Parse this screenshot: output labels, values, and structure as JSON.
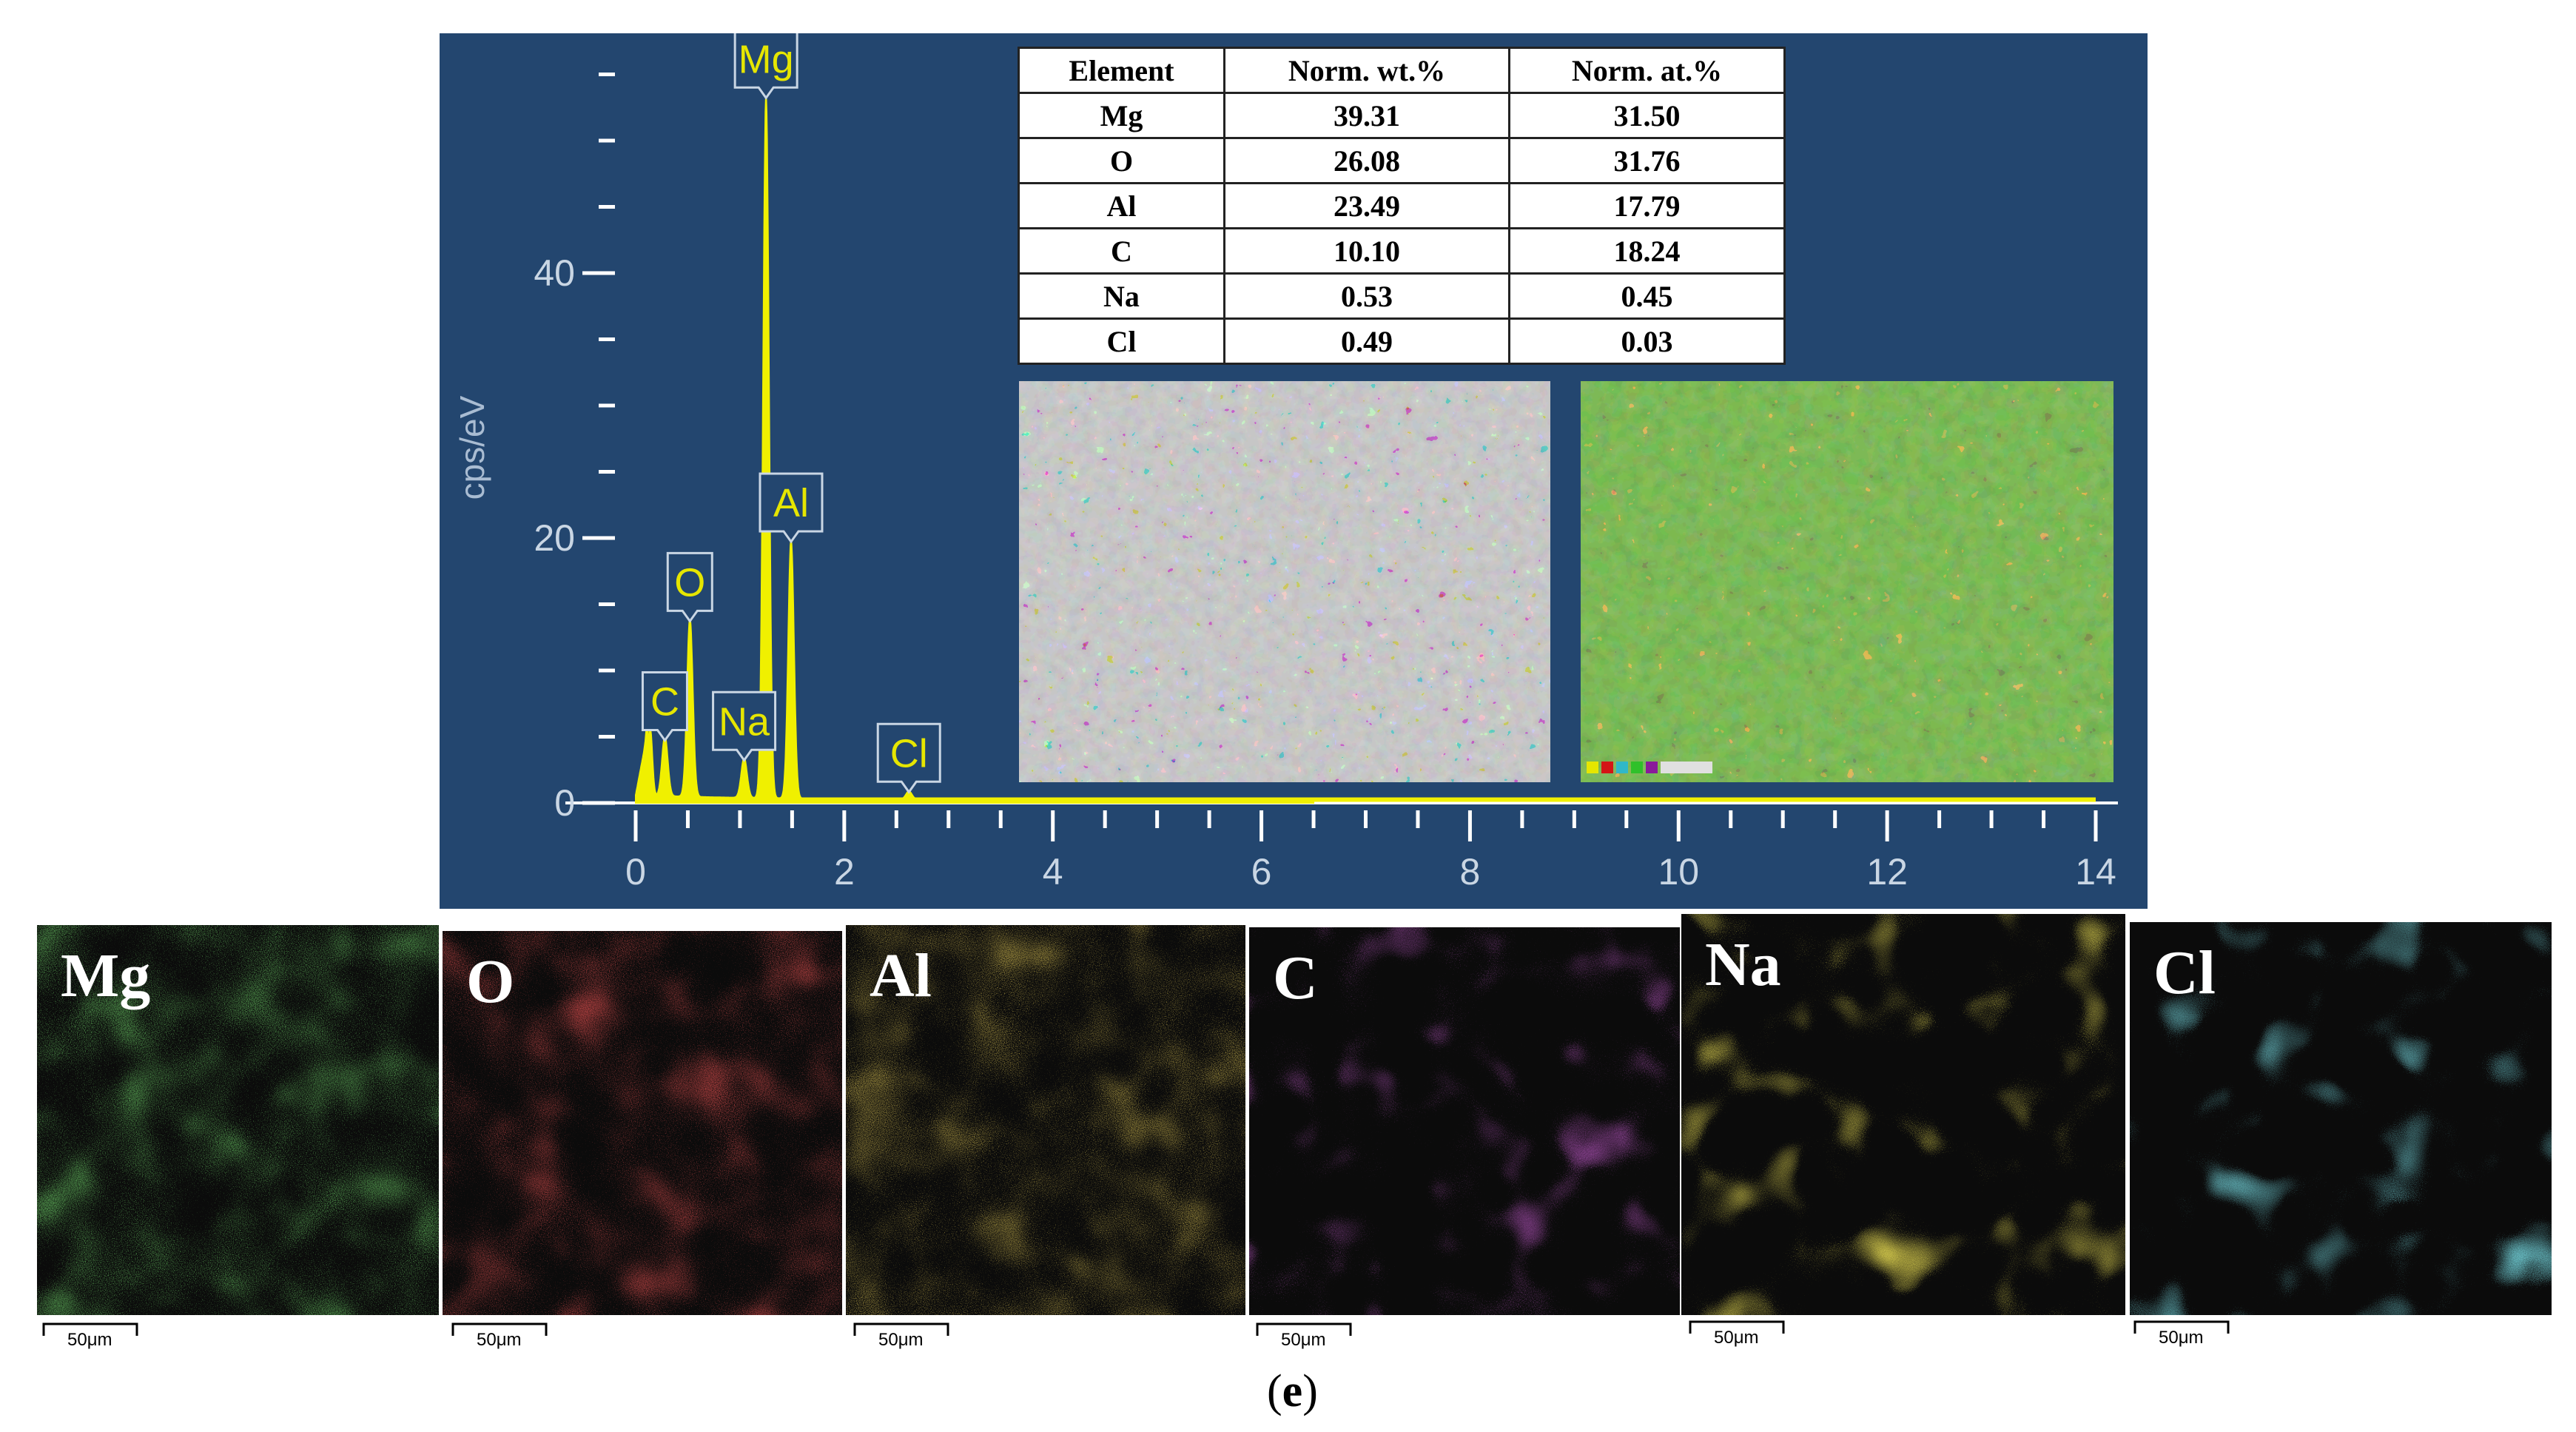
{
  "chart_data": {
    "type": "line",
    "ylabel": "cps/eV",
    "xlim": [
      0,
      14
    ],
    "ylim": [
      0,
      55
    ],
    "x_ticks": [
      0,
      2,
      4,
      6,
      8,
      10,
      12,
      14
    ],
    "y_ticks": [
      0,
      20,
      40
    ],
    "peaks": [
      {
        "element": "C",
        "energy_keV": 0.28,
        "cps_per_eV": 4.5
      },
      {
        "element": "O",
        "energy_keV": 0.52,
        "cps_per_eV": 13.5
      },
      {
        "element": "Na",
        "energy_keV": 1.04,
        "cps_per_eV": 3
      },
      {
        "element": "Mg",
        "energy_keV": 1.25,
        "cps_per_eV": 53
      },
      {
        "element": "Al",
        "energy_keV": 1.49,
        "cps_per_eV": 19.5
      },
      {
        "element": "Cl",
        "energy_keV": 2.62,
        "cps_per_eV": 0.6
      }
    ],
    "colors": {
      "background": "#23466f",
      "spectrum": "#f0f000",
      "axis": "#ffffff",
      "label": "#e6e600"
    }
  },
  "table": {
    "headers": [
      "Element",
      "Norm. wt.%",
      "Norm. at.%"
    ],
    "rows": [
      [
        "Mg",
        "39.31",
        "31.50"
      ],
      [
        "O",
        "26.08",
        "31.76"
      ],
      [
        "Al",
        "23.49",
        "17.79"
      ],
      [
        "C",
        "10.10",
        "18.24"
      ],
      [
        "Na",
        "0.53",
        "0.45"
      ],
      [
        "Cl",
        "0.49",
        "0.03"
      ]
    ]
  },
  "maps": [
    {
      "element": "Mg",
      "color": "#2fc12a",
      "scale": "50μm"
    },
    {
      "element": "O",
      "color": "#d41616",
      "scale": "50μm"
    },
    {
      "element": "Al",
      "color": "#d9a51a",
      "scale": "50μm"
    },
    {
      "element": "C",
      "color": "#8a1a9a",
      "scale": "50μm"
    },
    {
      "element": "Na",
      "color": "#c7b015",
      "scale": "50μm"
    },
    {
      "element": "Cl",
      "color": "#30b8c8",
      "scale": "50μm"
    }
  ],
  "caption": {
    "open": "(",
    "letter": "e",
    "close": ")"
  }
}
